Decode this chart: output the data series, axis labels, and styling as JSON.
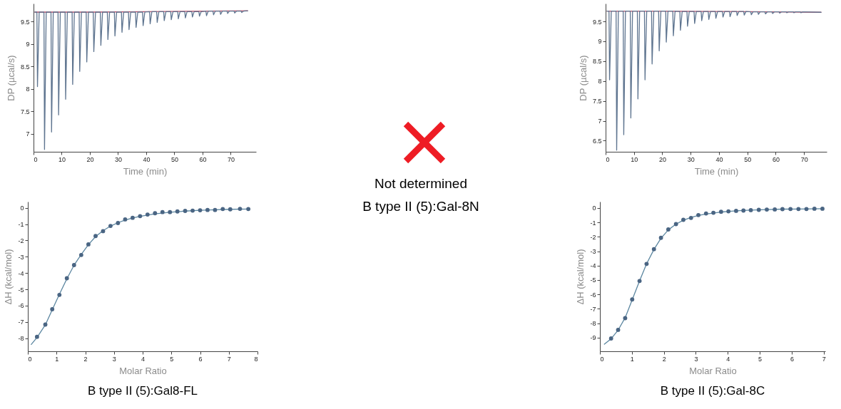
{
  "chart_data": [
    {
      "type": "line",
      "xlabel": "Time (min)",
      "ylabel": "DP (µcal/s)",
      "xlim": [
        0,
        79
      ],
      "ylim": [
        6.6,
        9.9
      ],
      "xticks": [
        0,
        10,
        20,
        30,
        40,
        50,
        60,
        70
      ],
      "yticks": [
        7,
        7.5,
        8,
        8.5,
        9,
        9.5
      ],
      "series": [
        {
          "color": "#c0506a",
          "x": [
            0.5,
            20,
            40,
            60,
            76
          ],
          "values": [
            9.71,
            9.71,
            9.72,
            9.73,
            9.74
          ]
        },
        {
          "color": "#5f7590",
          "x": [
            0.5,
            1.2,
            1.4,
            2.0,
            3.7,
            3.9,
            4.5,
            6.2,
            6.4,
            7.0,
            8.7,
            8.9,
            9.5,
            11.2,
            11.4,
            12.0,
            13.7,
            13.9,
            14.5,
            16.2,
            16.4,
            17.0,
            18.7,
            18.9,
            19.5,
            21.2,
            21.4,
            22.0,
            23.7,
            23.9,
            24.5,
            26.2,
            26.4,
            27.0,
            28.7,
            28.9,
            29.5,
            31.2,
            31.4,
            32.0,
            33.7,
            33.9,
            34.5,
            36.2,
            36.4,
            37.0,
            38.7,
            38.9,
            39.5,
            41.2,
            41.4,
            42.0,
            43.7,
            43.9,
            44.5,
            46.2,
            46.4,
            47.0,
            48.7,
            48.9,
            49.5,
            51.2,
            51.4,
            52.0,
            53.7,
            53.9,
            54.5,
            56.2,
            56.4,
            57.0,
            58.7,
            58.9,
            59.5,
            61.2,
            61.4,
            62.0,
            63.7,
            63.9,
            64.5,
            66.2,
            66.4,
            67.0,
            68.7,
            68.9,
            69.5,
            71.2,
            71.4,
            72.0,
            73.7,
            73.9,
            74.5,
            76
          ],
          "values": [
            9.71,
            9.71,
            8.05,
            9.71,
            9.71,
            6.65,
            9.71,
            9.71,
            7.04,
            9.71,
            9.71,
            7.42,
            9.71,
            9.71,
            7.77,
            9.71,
            9.71,
            8.1,
            9.71,
            9.71,
            8.39,
            9.71,
            9.71,
            8.6,
            9.71,
            9.71,
            8.83,
            9.71,
            9.71,
            8.97,
            9.71,
            9.71,
            9.1,
            9.71,
            9.71,
            9.18,
            9.71,
            9.71,
            9.26,
            9.71,
            9.71,
            9.32,
            9.71,
            9.71,
            9.37,
            9.71,
            9.71,
            9.41,
            9.71,
            9.72,
            9.45,
            9.72,
            9.72,
            9.48,
            9.72,
            9.72,
            9.52,
            9.72,
            9.72,
            9.54,
            9.72,
            9.72,
            9.56,
            9.72,
            9.72,
            9.58,
            9.72,
            9.72,
            9.6,
            9.72,
            9.72,
            9.62,
            9.72,
            9.73,
            9.63,
            9.73,
            9.73,
            9.65,
            9.73,
            9.73,
            9.66,
            9.73,
            9.73,
            9.68,
            9.73,
            9.73,
            9.69,
            9.73,
            9.73,
            9.7,
            9.73,
            9.74
          ]
        }
      ]
    },
    {
      "type": "line",
      "title": "B type II (5):Gal8-FL",
      "xlabel": "Molar Ratio",
      "ylabel": "ΔH (kcal/mol)",
      "xlim": [
        0,
        8
      ],
      "ylim": [
        -8.8,
        0.38
      ],
      "xticks": [
        0,
        1,
        2,
        3,
        4,
        5,
        6,
        7,
        8
      ],
      "yticks": [
        -8,
        -7,
        -6,
        -5,
        -4,
        -3,
        -2,
        -1,
        0
      ],
      "series": [
        {
          "type": "scatter",
          "marker": "circle",
          "color": "#4a6583",
          "x": [
            0.32,
            0.61,
            0.85,
            1.1,
            1.36,
            1.61,
            1.86,
            2.11,
            2.36,
            2.62,
            2.88,
            3.14,
            3.39,
            3.65,
            3.91,
            4.17,
            4.43,
            4.69,
            4.95,
            5.21,
            5.48,
            5.74,
            6.0,
            6.26,
            6.52,
            6.79,
            7.05,
            7.39,
            7.68
          ],
          "values": [
            -7.91,
            -7.16,
            -6.22,
            -5.34,
            -4.32,
            -3.51,
            -2.89,
            -2.24,
            -1.73,
            -1.43,
            -1.11,
            -0.93,
            -0.71,
            -0.61,
            -0.51,
            -0.41,
            -0.33,
            -0.26,
            -0.26,
            -0.22,
            -0.19,
            -0.17,
            -0.15,
            -0.13,
            -0.13,
            -0.07,
            -0.09,
            -0.06,
            -0.07
          ]
        },
        {
          "type": "line",
          "color": "#5b86a0",
          "x": [
            0.12,
            0.32,
            0.61,
            0.85,
            1.1,
            1.36,
            1.61,
            1.86,
            2.11,
            2.36,
            2.62,
            2.88,
            3.14,
            3.39,
            3.65,
            3.91,
            4.43,
            4.95,
            5.48,
            6.0,
            6.52,
            7.05,
            7.68
          ],
          "values": [
            -8.38,
            -7.95,
            -7.18,
            -6.25,
            -5.3,
            -4.35,
            -3.52,
            -2.86,
            -2.26,
            -1.76,
            -1.4,
            -1.12,
            -0.91,
            -0.75,
            -0.62,
            -0.52,
            -0.37,
            -0.27,
            -0.2,
            -0.15,
            -0.12,
            -0.09,
            -0.07
          ]
        }
      ]
    },
    {
      "type": "other",
      "annotations": [
        "Not determined",
        "B type II (5):Gal-8N"
      ]
    },
    {
      "type": "line",
      "xlabel": "Time (min)",
      "ylabel": "DP (µcal/s)",
      "xlim": [
        0,
        78
      ],
      "ylim": [
        6.22,
        9.95
      ],
      "xticks": [
        0,
        10,
        20,
        30,
        40,
        50,
        60,
        70
      ],
      "yticks": [
        6.5,
        7,
        7.5,
        8,
        8.5,
        9,
        9.5
      ],
      "series": [
        {
          "color": "#c0506a",
          "x": [
            0.5,
            20,
            40,
            60,
            76
          ],
          "values": [
            9.76,
            9.76,
            9.75,
            9.74,
            9.73
          ]
        },
        {
          "color": "#5f7590",
          "x": [
            0.5,
            1.2,
            1.4,
            2.0,
            3.7,
            3.9,
            4.5,
            6.2,
            6.4,
            7.0,
            8.7,
            8.9,
            9.5,
            11.2,
            11.4,
            12.0,
            13.7,
            13.9,
            14.5,
            16.2,
            16.4,
            17.0,
            18.7,
            18.9,
            19.5,
            21.2,
            21.4,
            22.0,
            23.7,
            23.9,
            24.5,
            26.2,
            26.4,
            27.0,
            28.7,
            28.9,
            29.5,
            31.2,
            31.4,
            32.0,
            33.7,
            33.9,
            34.5,
            36.2,
            36.4,
            37.0,
            38.7,
            38.9,
            39.5,
            41.2,
            41.4,
            42.0,
            43.7,
            43.9,
            44.5,
            46.2,
            46.4,
            47.0,
            48.7,
            48.9,
            49.5,
            51.2,
            51.4,
            52.0,
            53.7,
            53.9,
            54.5,
            56.2,
            56.4,
            57.0,
            58.7,
            58.9,
            59.5,
            61.2,
            61.4,
            62.0,
            63.7,
            63.9,
            64.5,
            66.2,
            66.4,
            67.0,
            68.7,
            68.9,
            69.5,
            76
          ],
          "values": [
            9.76,
            9.76,
            8.03,
            9.76,
            9.76,
            6.26,
            9.76,
            9.76,
            6.65,
            9.76,
            9.76,
            7.07,
            9.76,
            9.76,
            7.55,
            9.76,
            9.76,
            8.03,
            9.76,
            9.76,
            8.43,
            9.76,
            9.76,
            8.76,
            9.76,
            9.76,
            8.98,
            9.76,
            9.76,
            9.14,
            9.76,
            9.75,
            9.28,
            9.75,
            9.75,
            9.38,
            9.75,
            9.75,
            9.45,
            9.75,
            9.75,
            9.52,
            9.75,
            9.75,
            9.55,
            9.75,
            9.75,
            9.58,
            9.75,
            9.75,
            9.61,
            9.75,
            9.75,
            9.62,
            9.75,
            9.75,
            9.65,
            9.75,
            9.75,
            9.66,
            9.75,
            9.74,
            9.67,
            9.74,
            9.74,
            9.68,
            9.74,
            9.74,
            9.69,
            9.74,
            9.74,
            9.7,
            9.74,
            9.74,
            9.71,
            9.74,
            9.74,
            9.72,
            9.74,
            9.74,
            9.72,
            9.74,
            9.74,
            9.72,
            9.74,
            9.73
          ]
        }
      ]
    },
    {
      "type": "line",
      "title": "B type II (5):Gal-8C",
      "xlabel": "Molar Ratio",
      "ylabel": "ΔH (kcal/mol)",
      "xlim": [
        0,
        7.05
      ],
      "ylim": [
        -9.95,
        0.44
      ],
      "xticks": [
        0,
        1,
        2,
        3,
        4,
        5,
        6,
        7
      ],
      "yticks": [
        -9,
        -8,
        -7,
        -6,
        -5,
        -4,
        -3,
        -2,
        -1,
        0
      ],
      "series": [
        {
          "type": "scatter",
          "marker": "circle",
          "color": "#4a6583",
          "x": [
            0.35,
            0.57,
            0.79,
            1.01,
            1.24,
            1.46,
            1.69,
            1.91,
            2.14,
            2.38,
            2.61,
            2.85,
            3.08,
            3.32,
            3.55,
            3.79,
            4.02,
            4.26,
            4.49,
            4.72,
            4.97,
            5.22,
            5.47,
            5.71,
            5.96,
            6.21,
            6.46,
            6.71,
            6.96
          ],
          "values": [
            -9.06,
            -8.46,
            -7.65,
            -6.35,
            -5.07,
            -3.88,
            -2.86,
            -2.07,
            -1.49,
            -1.12,
            -0.82,
            -0.69,
            -0.49,
            -0.38,
            -0.33,
            -0.26,
            -0.23,
            -0.2,
            -0.18,
            -0.15,
            -0.13,
            -0.11,
            -0.1,
            -0.08,
            -0.07,
            -0.07,
            -0.07,
            -0.05,
            -0.05
          ]
        },
        {
          "type": "line",
          "color": "#5b86a0",
          "x": [
            0.14,
            0.35,
            0.57,
            0.79,
            1.01,
            1.24,
            1.46,
            1.69,
            1.91,
            2.14,
            2.38,
            2.61,
            2.85,
            3.08,
            3.32,
            3.79,
            4.26,
            4.72,
            5.22,
            5.71,
            6.21,
            6.96
          ],
          "values": [
            -9.46,
            -9.08,
            -8.48,
            -7.62,
            -6.38,
            -5.06,
            -3.88,
            -2.88,
            -2.1,
            -1.52,
            -1.12,
            -0.85,
            -0.66,
            -0.52,
            -0.42,
            -0.28,
            -0.2,
            -0.15,
            -0.11,
            -0.08,
            -0.07,
            -0.05
          ]
        }
      ]
    }
  ]
}
